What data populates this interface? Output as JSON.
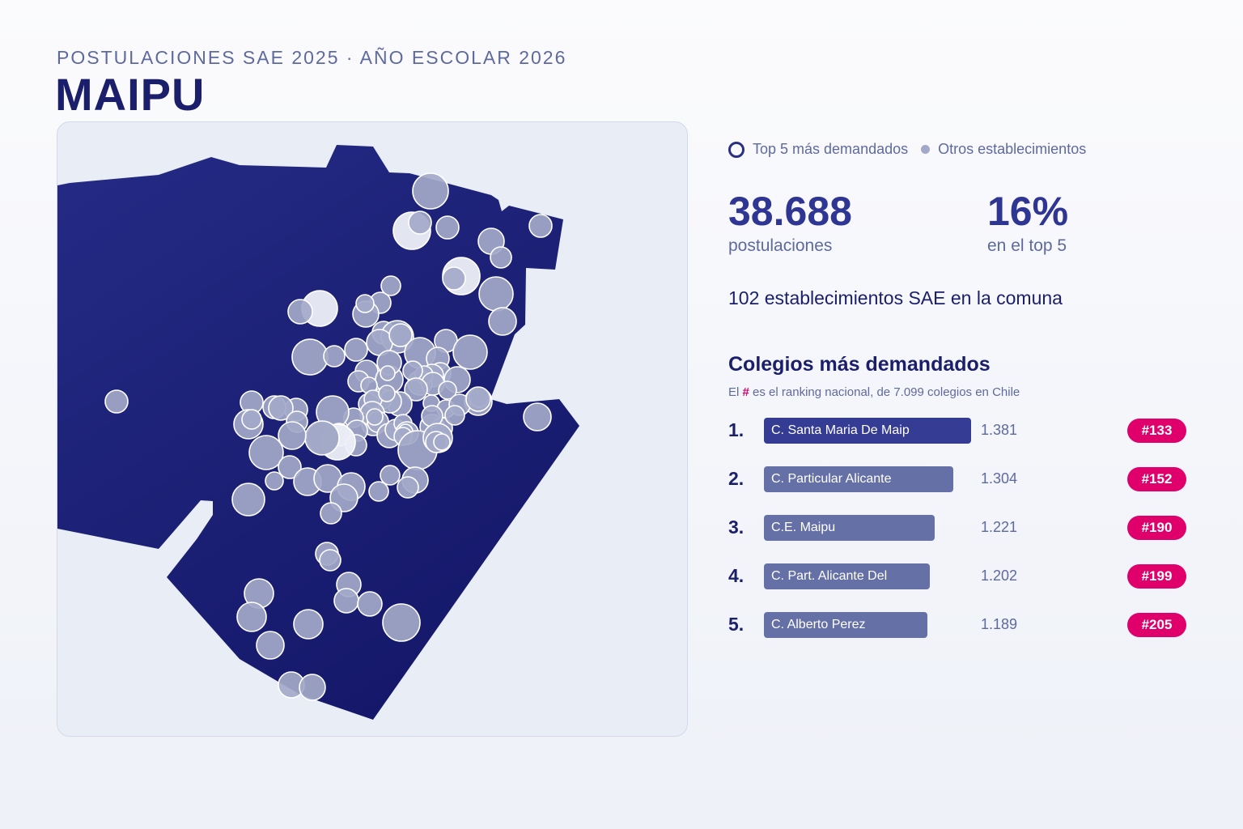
{
  "header": {
    "subtitle": "POSTULACIONES SAE 2025 · AÑO ESCOLAR 2026",
    "title": "MAIPU"
  },
  "legend": {
    "top5_label": "Top 5 más demandados",
    "others_label": "Otros establecimientos"
  },
  "kpis": {
    "applications_value": "38.688",
    "applications_label": "postulaciones",
    "top5_share_value": "16%",
    "top5_share_label": "en el top 5"
  },
  "schools_count_text": "102 establecimientos SAE en la comuna",
  "ranking": {
    "title": "Colegios más demandados",
    "note_prefix": "El",
    "note_hash": "#",
    "note_suffix": "es el ranking nacional, de 7.099 colegios en Chile",
    "max_applications": 1381,
    "items": [
      {
        "num": "1.",
        "name": "C. Santa Maria De Maip",
        "applications": 1381,
        "applications_label": "1.381",
        "badge": "#133"
      },
      {
        "num": "2.",
        "name": "C. Particular Alicante",
        "applications": 1304,
        "applications_label": "1.304",
        "badge": "#152"
      },
      {
        "num": "3.",
        "name": "C.E. Maipu",
        "applications": 1221,
        "applications_label": "1.221",
        "badge": "#190"
      },
      {
        "num": "4.",
        "name": "C. Part. Alicante Del",
        "applications": 1202,
        "applications_label": "1.202",
        "badge": "#199"
      },
      {
        "num": "5.",
        "name": "C. Alberto Perez",
        "applications": 1189,
        "applications_label": "1.189",
        "badge": "#205"
      }
    ]
  },
  "colors": {
    "commune_fill": "#1f2479",
    "school_fill": "#a3a9c8",
    "top5_fill": "#eef0f8",
    "badge": "#e0006c",
    "bar_first": "#353c94",
    "bar_other": "#6470a6"
  }
}
